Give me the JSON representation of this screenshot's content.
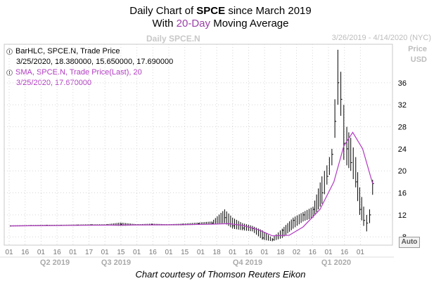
{
  "header": {
    "title_pre": "Daily Chart of ",
    "title_symbol": "SPCE",
    "title_post": " since March 2019",
    "subtitle_pre": "With ",
    "subtitle_ma": "20-Day",
    "subtitle_post": " Moving Average",
    "instrument": "Daily SPCE.N",
    "date_range": "3/26/2019 - 4/14/2020 (NYC)"
  },
  "legend": {
    "bar_label": "BarHLC, SPCE.N, Trade Price",
    "bar_values": "3/25/2020, 18.380000, 15.650000, 17.690000",
    "sma_label": "SMA, SPCE.N, Trade Price(Last),  20",
    "sma_values": "3/25/2020, 17.670000"
  },
  "y_axis": {
    "label_line1": "Price",
    "label_line2": "USD"
  },
  "auto_button": "Auto",
  "credit": "Chart courtesy of Thomson Reuters Eikon",
  "colors": {
    "bars": "#000000",
    "sma": "#b23bc2",
    "grid": "#d6d6d6"
  },
  "chart_data": {
    "type": "line",
    "title": "Daily Chart of SPCE since March 2019",
    "subtitle": "With 20-Day Moving Average",
    "ylabel": "Price USD",
    "ylim": [
      6.5,
      43
    ],
    "y_ticks": [
      8,
      12,
      16,
      20,
      24,
      28,
      32,
      36
    ],
    "grid": true,
    "x_ticks": [
      "01",
      "16",
      "01",
      "16",
      "01",
      "17",
      "01",
      "15",
      "01",
      "16",
      "01",
      "15",
      "01",
      "18",
      "01",
      "16",
      "01",
      "18",
      "02",
      "16",
      "01",
      "16",
      "01"
    ],
    "x_quarters": [
      "Q2 2019",
      "Q3 2019",
      "Q4 2019",
      "Q1 2020"
    ],
    "series": [
      {
        "name": "BarHLC, SPCE.N, Trade Price",
        "kind": "hlc_bars",
        "points": [
          {
            "x": "2019-03-26",
            "h": 10.1,
            "l": 9.9,
            "c": 10.0
          },
          {
            "x": "2019-04-15",
            "h": 10.15,
            "l": 9.95,
            "c": 10.05
          },
          {
            "x": "2019-05-01",
            "h": 10.2,
            "l": 10.0,
            "c": 10.1
          },
          {
            "x": "2019-05-15",
            "h": 10.2,
            "l": 10.0,
            "c": 10.1
          },
          {
            "x": "2019-06-01",
            "h": 10.25,
            "l": 10.05,
            "c": 10.15
          },
          {
            "x": "2019-06-15",
            "h": 10.3,
            "l": 10.1,
            "c": 10.2
          },
          {
            "x": "2019-07-01",
            "h": 10.3,
            "l": 10.1,
            "c": 10.2
          },
          {
            "x": "2019-07-15",
            "h": 10.6,
            "l": 10.0,
            "c": 10.3
          },
          {
            "x": "2019-08-01",
            "h": 10.3,
            "l": 10.1,
            "c": 10.2
          },
          {
            "x": "2019-08-15",
            "h": 10.4,
            "l": 10.1,
            "c": 10.3
          },
          {
            "x": "2019-09-01",
            "h": 10.3,
            "l": 10.1,
            "c": 10.2
          },
          {
            "x": "2019-09-15",
            "h": 10.4,
            "l": 10.1,
            "c": 10.3
          },
          {
            "x": "2019-10-01",
            "h": 10.6,
            "l": 10.2,
            "c": 10.4
          },
          {
            "x": "2019-10-15",
            "h": 10.8,
            "l": 10.3,
            "c": 10.5
          },
          {
            "x": "2019-10-28",
            "h": 13.0,
            "l": 10.5,
            "c": 11.5
          },
          {
            "x": "2019-11-05",
            "h": 11.5,
            "l": 9.5,
            "c": 10.0
          },
          {
            "x": "2019-11-15",
            "h": 10.5,
            "l": 9.2,
            "c": 9.6
          },
          {
            "x": "2019-11-25",
            "h": 10.0,
            "l": 9.0,
            "c": 9.5
          },
          {
            "x": "2019-12-05",
            "h": 9.2,
            "l": 7.5,
            "c": 7.8
          },
          {
            "x": "2019-12-15",
            "h": 7.8,
            "l": 7.2,
            "c": 7.5
          },
          {
            "x": "2019-12-25",
            "h": 9.5,
            "l": 7.8,
            "c": 9.2
          },
          {
            "x": "2020-01-05",
            "h": 11.5,
            "l": 9.5,
            "c": 11.0
          },
          {
            "x": "2020-01-15",
            "h": 12.5,
            "l": 10.8,
            "c": 12.0
          },
          {
            "x": "2020-01-25",
            "h": 13.5,
            "l": 11.5,
            "c": 13.0
          },
          {
            "x": "2020-02-03",
            "h": 19.0,
            "l": 14.0,
            "c": 16.0
          },
          {
            "x": "2020-02-08",
            "h": 21.0,
            "l": 17.5,
            "c": 19.0
          },
          {
            "x": "2020-02-13",
            "h": 24.0,
            "l": 21.0,
            "c": 23.0
          },
          {
            "x": "2020-02-16",
            "h": 33.0,
            "l": 26.0,
            "c": 29.0
          },
          {
            "x": "2020-02-19",
            "h": 42.0,
            "l": 32.0,
            "c": 36.0
          },
          {
            "x": "2020-02-22",
            "h": 38.0,
            "l": 30.0,
            "c": 33.0
          },
          {
            "x": "2020-02-25",
            "h": 32.0,
            "l": 22.0,
            "c": 25.0
          },
          {
            "x": "2020-02-28",
            "h": 28.0,
            "l": 21.0,
            "c": 24.0
          },
          {
            "x": "2020-03-03",
            "h": 26.0,
            "l": 20.0,
            "c": 21.5
          },
          {
            "x": "2020-03-08",
            "h": 22.5,
            "l": 17.0,
            "c": 18.0
          },
          {
            "x": "2020-03-12",
            "h": 17.0,
            "l": 12.0,
            "c": 13.0
          },
          {
            "x": "2020-03-16",
            "h": 13.5,
            "l": 10.0,
            "c": 11.0
          },
          {
            "x": "2020-03-19",
            "h": 12.0,
            "l": 9.0,
            "c": 10.5
          },
          {
            "x": "2020-03-22",
            "h": 13.0,
            "l": 10.5,
            "c": 12.0
          },
          {
            "x": "2020-03-25",
            "h": 18.38,
            "l": 15.65,
            "c": 17.69
          }
        ]
      },
      {
        "name": "SMA, SPCE.N, Trade Price(Last),  20",
        "kind": "line",
        "x": [
          "2019-03-26",
          "2019-06-01",
          "2019-09-01",
          "2019-10-15",
          "2019-11-01",
          "2019-11-15",
          "2019-12-01",
          "2019-12-15",
          "2020-01-01",
          "2020-01-15",
          "2020-02-01",
          "2020-02-15",
          "2020-02-25",
          "2020-03-05",
          "2020-03-15",
          "2020-03-25"
        ],
        "y": [
          10.0,
          10.1,
          10.2,
          10.3,
          10.4,
          10.1,
          9.3,
          8.2,
          8.3,
          9.8,
          13.0,
          18.0,
          24.5,
          27.0,
          24.0,
          17.67
        ]
      }
    ]
  }
}
